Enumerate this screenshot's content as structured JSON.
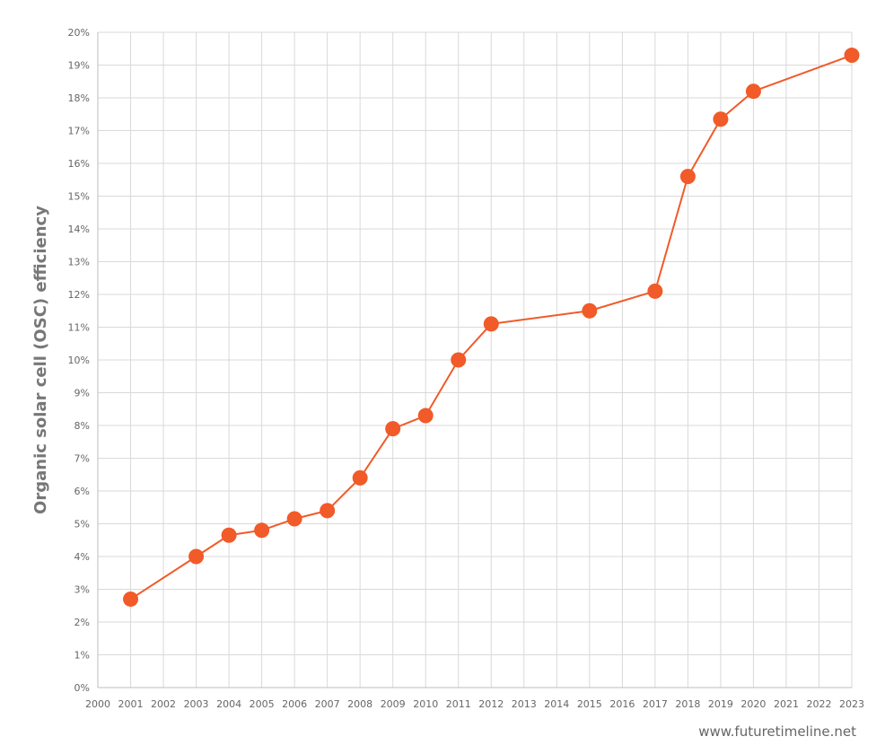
{
  "chart_data": {
    "type": "line",
    "title": "",
    "xlabel": "",
    "ylabel": "Organic solar cell (OSC) efficiency",
    "x_ticks": [
      2000,
      2001,
      2002,
      2003,
      2004,
      2005,
      2006,
      2007,
      2008,
      2009,
      2010,
      2011,
      2012,
      2013,
      2014,
      2015,
      2016,
      2017,
      2018,
      2019,
      2020,
      2021,
      2022,
      2023
    ],
    "x_tick_labels": [
      "2000",
      "2001",
      "2002",
      "2003",
      "2004",
      "2005",
      "2006",
      "2007",
      "2008",
      "2009",
      "2010",
      "2011",
      "2012",
      "2013",
      "2014",
      "2015",
      "2016",
      "2017",
      "2018",
      "2019",
      "2020",
      "2021",
      "2022",
      "2023"
    ],
    "y_ticks": [
      0,
      1,
      2,
      3,
      4,
      5,
      6,
      7,
      8,
      9,
      10,
      11,
      12,
      13,
      14,
      15,
      16,
      17,
      18,
      19,
      20
    ],
    "y_tick_labels": [
      "0%",
      "1%",
      "2%",
      "3%",
      "4%",
      "5%",
      "6%",
      "7%",
      "8%",
      "9%",
      "10%",
      "11%",
      "12%",
      "13%",
      "14%",
      "15%",
      "16%",
      "17%",
      "18%",
      "19%",
      "20%"
    ],
    "xlim": [
      2000,
      2023
    ],
    "ylim": [
      0,
      20
    ],
    "grid": true,
    "series": [
      {
        "color": "#f15a29",
        "points": [
          {
            "x": 2001,
            "y": 2.7
          },
          {
            "x": 2003,
            "y": 4.0
          },
          {
            "x": 2004,
            "y": 4.65
          },
          {
            "x": 2005,
            "y": 4.8
          },
          {
            "x": 2006,
            "y": 5.15
          },
          {
            "x": 2007,
            "y": 5.4
          },
          {
            "x": 2008,
            "y": 6.4
          },
          {
            "x": 2009,
            "y": 7.9
          },
          {
            "x": 2010,
            "y": 8.3
          },
          {
            "x": 2011,
            "y": 10.0
          },
          {
            "x": 2012,
            "y": 11.1
          },
          {
            "x": 2015,
            "y": 11.5
          },
          {
            "x": 2017,
            "y": 12.1
          },
          {
            "x": 2018,
            "y": 15.6
          },
          {
            "x": 2019,
            "y": 17.35
          },
          {
            "x": 2020,
            "y": 18.2
          },
          {
            "x": 2023,
            "y": 19.3
          }
        ]
      }
    ]
  },
  "credit": "www.futuretimeline.net"
}
